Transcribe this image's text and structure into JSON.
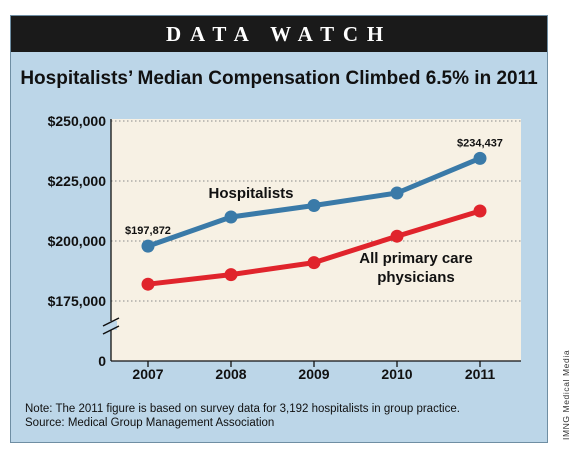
{
  "banner": "DATA WATCH",
  "note_lines": [
    "Note: The 2011 figure is based on survey data for 3,192 hospitalists in group practice.",
    "Source: Medical Group Management Association"
  ],
  "credit": "IMNG Medical Media",
  "colors": {
    "panel": "#bcd6e8",
    "plot_bg": "#f7f1e4",
    "hospitalists": "#3a7aa8",
    "primary_care": "#e0242c"
  },
  "chart_data": {
    "type": "line",
    "title": "Hospitalists’ Median Compensation Climbed 6.5% in 2011",
    "x": [
      "2007",
      "2008",
      "2009",
      "2010",
      "2011"
    ],
    "series": [
      {
        "name": "Hospitalists",
        "values": [
          197872,
          210000,
          214800,
          220000,
          234437
        ]
      },
      {
        "name": "All primary care physicians",
        "values": [
          182000,
          186000,
          191000,
          202000,
          212500
        ]
      }
    ],
    "y_ticks": [
      {
        "value": 250000,
        "label": "$250,000"
      },
      {
        "value": 225000,
        "label": "$225,000"
      },
      {
        "value": 200000,
        "label": "$200,000"
      },
      {
        "value": 175000,
        "label": "$175,000"
      }
    ],
    "y_zero_label": "0",
    "ylim": [
      175000,
      250000
    ],
    "axis_break": true,
    "grid": "horizontal dotted",
    "data_labels": [
      {
        "series": 0,
        "index": 0,
        "text": "$197,872"
      },
      {
        "series": 0,
        "index": 4,
        "text": "$234,437"
      }
    ],
    "series_labels": [
      {
        "series": 0,
        "lines": [
          "Hospitalists"
        ]
      },
      {
        "series": 1,
        "lines": [
          "All primary care",
          "physicians"
        ]
      }
    ]
  }
}
